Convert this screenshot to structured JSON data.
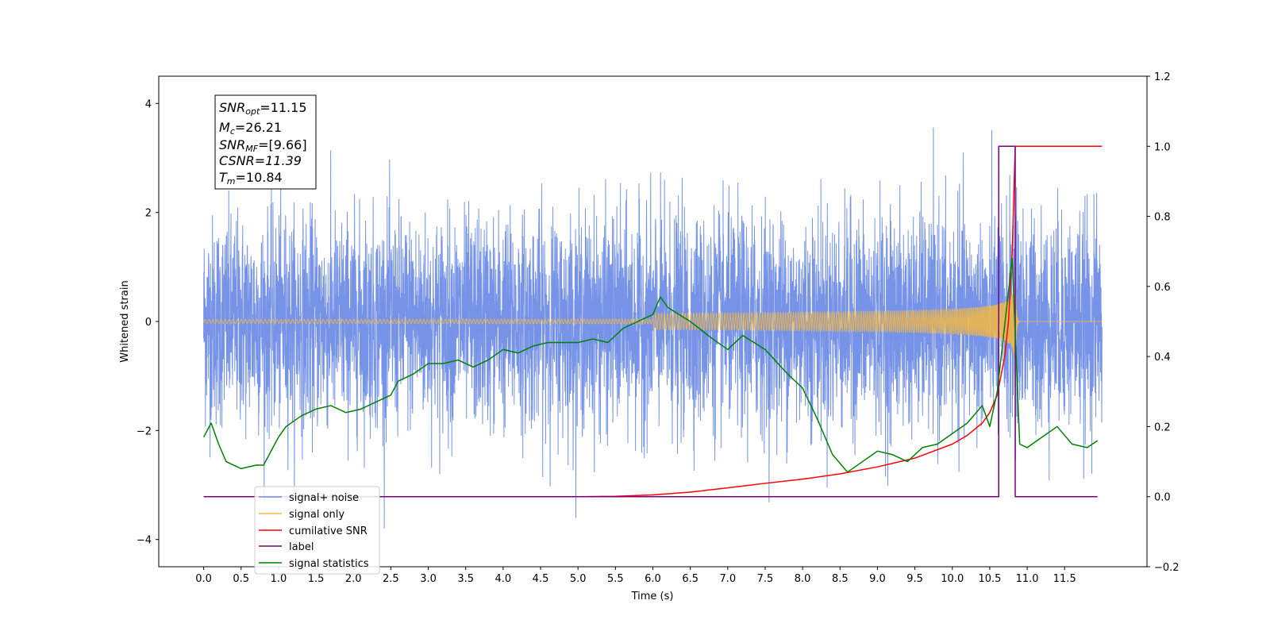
{
  "chart_data": {
    "type": "line",
    "xlabel": "Time (s)",
    "ylabel_left": "Whitened strain",
    "xlim": [
      -0.6,
      12.6
    ],
    "ylim_left": [
      -4.5,
      4.5
    ],
    "ylim_right": [
      -0.2,
      1.2
    ],
    "x_ticks": [
      "0.0",
      "0.5",
      "1.0",
      "1.5",
      "2.0",
      "2.5",
      "3.0",
      "3.5",
      "4.0",
      "4.5",
      "5.0",
      "5.5",
      "6.0",
      "6.5",
      "7.0",
      "7.5",
      "8.0",
      "8.5",
      "9.0",
      "9.5",
      "10.0",
      "10.5",
      "11.0",
      "11.5"
    ],
    "y_ticks_left": [
      "4",
      "2",
      "0",
      "−2",
      "−4"
    ],
    "y_ticks_right": [
      "1.2",
      "1.0",
      "0.8",
      "0.6",
      "0.4",
      "0.2",
      "0.0",
      "−0.2"
    ],
    "colors": {
      "noise": "#6f8de6",
      "signal": "#f5b942",
      "snr": "#ff0000",
      "label": "#7b0080",
      "stats": "#008000"
    },
    "annotation": {
      "snr_opt_main": "SNR",
      "snr_opt_sub": "opt",
      "snr_opt_val": "=11.15",
      "mc_main": "M",
      "mc_sub": "c",
      "mc_val": "=26.21",
      "snr_mf_main": "SNR",
      "snr_mf_sub": "MF",
      "snr_mf_val": "=[9.66]",
      "csnr": "CSNR=11.39",
      "tm_main": "T",
      "tm_sub": "m",
      "tm_val": "=10.84"
    },
    "legend": {
      "placement": "lower-left",
      "entries": [
        "signal+ noise",
        "signal only",
        "cumilative SNR",
        "label",
        "signal statistics"
      ]
    },
    "series": [
      {
        "name": "signal+ noise",
        "axis": "left",
        "x_range": [
          0.0,
          12.0
        ],
        "noise_std": 0.95,
        "y_range": [
          -4.1,
          4.1
        ]
      },
      {
        "name": "signal only",
        "axis": "left",
        "x_range": [
          0.0,
          12.0
        ],
        "chirp_peak_time": 10.84,
        "peak_amplitude": 0.95
      },
      {
        "name": "cumilative SNR",
        "axis": "right",
        "x": [
          0.0,
          5.0,
          5.5,
          6.0,
          6.5,
          7.0,
          7.5,
          8.0,
          8.5,
          9.0,
          9.5,
          10.0,
          10.2,
          10.4,
          10.5,
          10.6,
          10.7,
          10.75,
          10.8,
          10.84,
          12.0
        ],
        "y": [
          0.0,
          0.0,
          0.001,
          0.005,
          0.013,
          0.025,
          0.038,
          0.05,
          0.065,
          0.085,
          0.11,
          0.15,
          0.175,
          0.21,
          0.24,
          0.29,
          0.4,
          0.5,
          0.7,
          1.0,
          1.0
        ]
      },
      {
        "name": "label",
        "axis": "right",
        "x": [
          0.0,
          10.62,
          10.62,
          10.84,
          10.84,
          11.94
        ],
        "y": [
          0.0,
          0.0,
          1.0,
          1.0,
          0.0,
          0.0
        ]
      },
      {
        "name": "signal statistics",
        "axis": "right",
        "x": [
          0.0,
          0.1,
          0.2,
          0.3,
          0.5,
          0.7,
          0.8,
          1.0,
          1.1,
          1.3,
          1.5,
          1.7,
          1.9,
          2.1,
          2.3,
          2.5,
          2.6,
          2.8,
          3.0,
          3.2,
          3.4,
          3.6,
          3.8,
          4.0,
          4.2,
          4.4,
          4.6,
          4.8,
          5.0,
          5.2,
          5.4,
          5.6,
          5.8,
          6.0,
          6.1,
          6.2,
          6.5,
          6.8,
          7.0,
          7.2,
          7.5,
          7.8,
          8.0,
          8.2,
          8.4,
          8.6,
          8.8,
          9.0,
          9.2,
          9.4,
          9.6,
          9.8,
          10.0,
          10.2,
          10.4,
          10.5,
          10.6,
          10.8,
          10.9,
          11.0,
          11.2,
          11.4,
          11.6,
          11.8,
          11.94
        ],
        "y": [
          0.17,
          0.21,
          0.15,
          0.1,
          0.08,
          0.09,
          0.09,
          0.17,
          0.2,
          0.23,
          0.25,
          0.26,
          0.24,
          0.25,
          0.27,
          0.29,
          0.33,
          0.35,
          0.38,
          0.38,
          0.39,
          0.37,
          0.39,
          0.42,
          0.41,
          0.43,
          0.44,
          0.44,
          0.44,
          0.45,
          0.44,
          0.48,
          0.5,
          0.52,
          0.57,
          0.54,
          0.5,
          0.45,
          0.42,
          0.46,
          0.42,
          0.35,
          0.31,
          0.22,
          0.12,
          0.07,
          0.1,
          0.13,
          0.12,
          0.1,
          0.14,
          0.15,
          0.18,
          0.21,
          0.26,
          0.2,
          0.3,
          0.68,
          0.15,
          0.14,
          0.17,
          0.2,
          0.15,
          0.14,
          0.16
        ]
      }
    ]
  }
}
